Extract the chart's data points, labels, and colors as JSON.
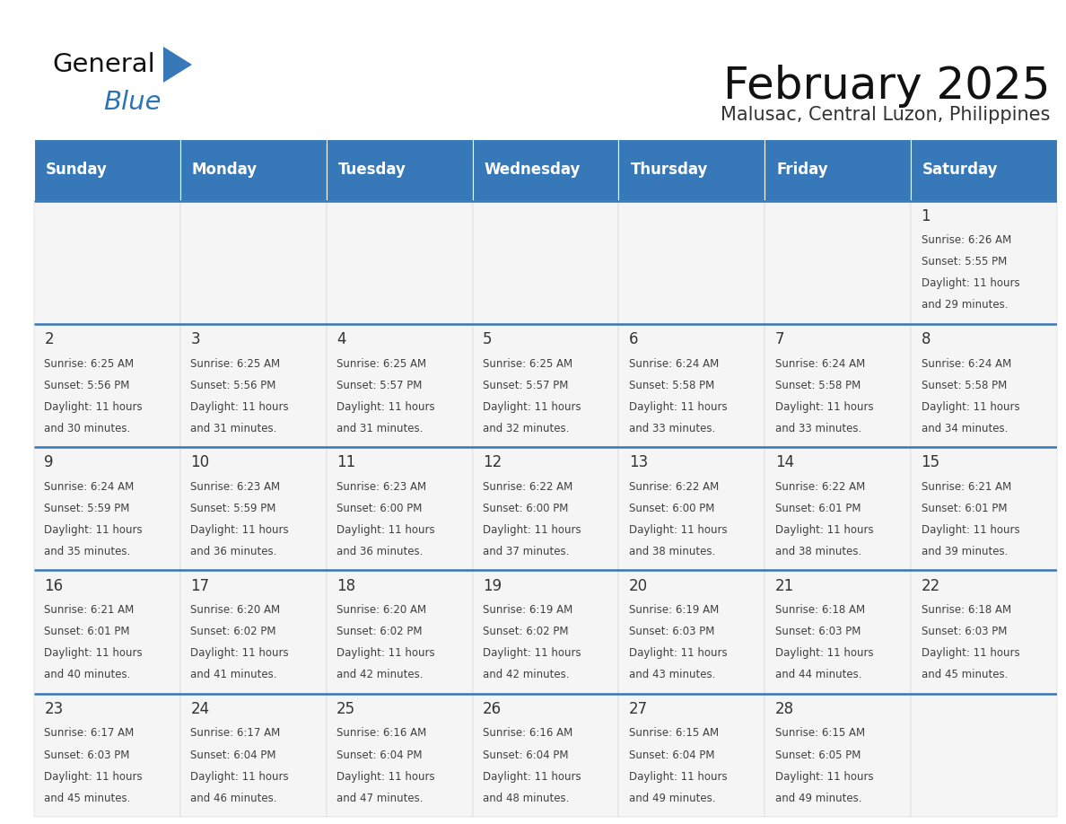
{
  "title": "February 2025",
  "subtitle": "Malusac, Central Luzon, Philippines",
  "header_bg": "#3778B8",
  "header_text_color": "#FFFFFF",
  "day_names": [
    "Sunday",
    "Monday",
    "Tuesday",
    "Wednesday",
    "Thursday",
    "Friday",
    "Saturday"
  ],
  "separator_color": "#3778B8",
  "text_color": "#404040",
  "day_num_color": "#333333",
  "cell_bg": "#F5F5F5",
  "title_fontsize": 36,
  "subtitle_fontsize": 15,
  "header_fontsize": 12,
  "day_num_fontsize": 12,
  "info_fontsize": 8.5,
  "calendar": [
    [
      null,
      null,
      null,
      null,
      null,
      null,
      {
        "day": 1,
        "sunrise": "6:26 AM",
        "sunset": "5:55 PM",
        "daylight": "11 hours and 29 minutes."
      }
    ],
    [
      {
        "day": 2,
        "sunrise": "6:25 AM",
        "sunset": "5:56 PM",
        "daylight": "11 hours and 30 minutes."
      },
      {
        "day": 3,
        "sunrise": "6:25 AM",
        "sunset": "5:56 PM",
        "daylight": "11 hours and 31 minutes."
      },
      {
        "day": 4,
        "sunrise": "6:25 AM",
        "sunset": "5:57 PM",
        "daylight": "11 hours and 31 minutes."
      },
      {
        "day": 5,
        "sunrise": "6:25 AM",
        "sunset": "5:57 PM",
        "daylight": "11 hours and 32 minutes."
      },
      {
        "day": 6,
        "sunrise": "6:24 AM",
        "sunset": "5:58 PM",
        "daylight": "11 hours and 33 minutes."
      },
      {
        "day": 7,
        "sunrise": "6:24 AM",
        "sunset": "5:58 PM",
        "daylight": "11 hours and 33 minutes."
      },
      {
        "day": 8,
        "sunrise": "6:24 AM",
        "sunset": "5:58 PM",
        "daylight": "11 hours and 34 minutes."
      }
    ],
    [
      {
        "day": 9,
        "sunrise": "6:24 AM",
        "sunset": "5:59 PM",
        "daylight": "11 hours and 35 minutes."
      },
      {
        "day": 10,
        "sunrise": "6:23 AM",
        "sunset": "5:59 PM",
        "daylight": "11 hours and 36 minutes."
      },
      {
        "day": 11,
        "sunrise": "6:23 AM",
        "sunset": "6:00 PM",
        "daylight": "11 hours and 36 minutes."
      },
      {
        "day": 12,
        "sunrise": "6:22 AM",
        "sunset": "6:00 PM",
        "daylight": "11 hours and 37 minutes."
      },
      {
        "day": 13,
        "sunrise": "6:22 AM",
        "sunset": "6:00 PM",
        "daylight": "11 hours and 38 minutes."
      },
      {
        "day": 14,
        "sunrise": "6:22 AM",
        "sunset": "6:01 PM",
        "daylight": "11 hours and 38 minutes."
      },
      {
        "day": 15,
        "sunrise": "6:21 AM",
        "sunset": "6:01 PM",
        "daylight": "11 hours and 39 minutes."
      }
    ],
    [
      {
        "day": 16,
        "sunrise": "6:21 AM",
        "sunset": "6:01 PM",
        "daylight": "11 hours and 40 minutes."
      },
      {
        "day": 17,
        "sunrise": "6:20 AM",
        "sunset": "6:02 PM",
        "daylight": "11 hours and 41 minutes."
      },
      {
        "day": 18,
        "sunrise": "6:20 AM",
        "sunset": "6:02 PM",
        "daylight": "11 hours and 42 minutes."
      },
      {
        "day": 19,
        "sunrise": "6:19 AM",
        "sunset": "6:02 PM",
        "daylight": "11 hours and 42 minutes."
      },
      {
        "day": 20,
        "sunrise": "6:19 AM",
        "sunset": "6:03 PM",
        "daylight": "11 hours and 43 minutes."
      },
      {
        "day": 21,
        "sunrise": "6:18 AM",
        "sunset": "6:03 PM",
        "daylight": "11 hours and 44 minutes."
      },
      {
        "day": 22,
        "sunrise": "6:18 AM",
        "sunset": "6:03 PM",
        "daylight": "11 hours and 45 minutes."
      }
    ],
    [
      {
        "day": 23,
        "sunrise": "6:17 AM",
        "sunset": "6:03 PM",
        "daylight": "11 hours and 45 minutes."
      },
      {
        "day": 24,
        "sunrise": "6:17 AM",
        "sunset": "6:04 PM",
        "daylight": "11 hours and 46 minutes."
      },
      {
        "day": 25,
        "sunrise": "6:16 AM",
        "sunset": "6:04 PM",
        "daylight": "11 hours and 47 minutes."
      },
      {
        "day": 26,
        "sunrise": "6:16 AM",
        "sunset": "6:04 PM",
        "daylight": "11 hours and 48 minutes."
      },
      {
        "day": 27,
        "sunrise": "6:15 AM",
        "sunset": "6:04 PM",
        "daylight": "11 hours and 49 minutes."
      },
      {
        "day": 28,
        "sunrise": "6:15 AM",
        "sunset": "6:05 PM",
        "daylight": "11 hours and 49 minutes."
      },
      null
    ]
  ]
}
